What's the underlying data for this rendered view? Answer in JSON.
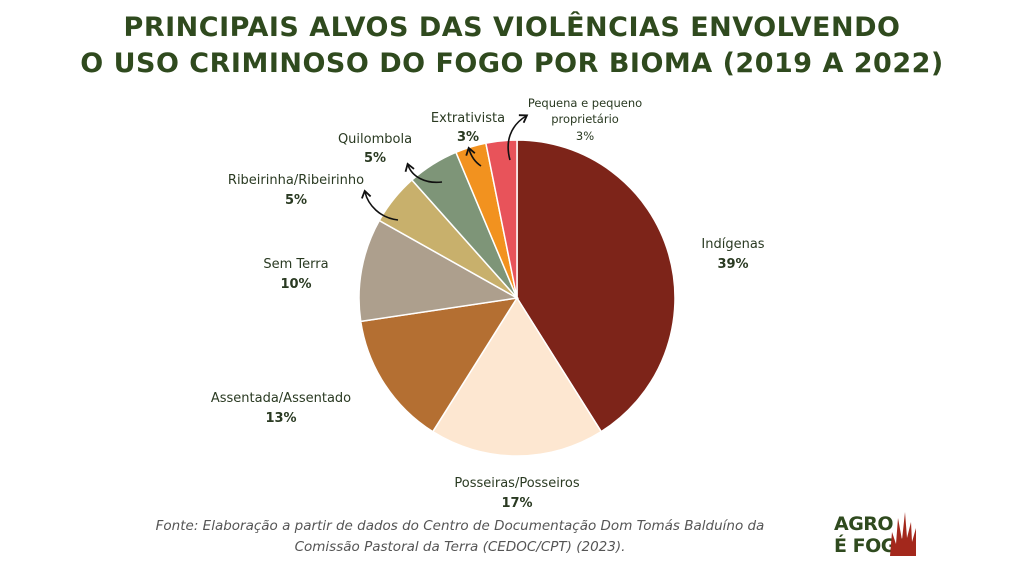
{
  "title": {
    "line1": "PRINCIPAIS ALVOS DAS VIOLÊNCIAS ENVOLVENDO",
    "line2": "O USO CRIMINOSO DO FOGO POR BIOMA (2019 A 2022)"
  },
  "chart_data": {
    "type": "pie",
    "title": "PRINCIPAIS ALVOS DAS VIOLÊNCIAS ENVOLVENDO O USO CRIMINOSO DO FOGO POR BIOMA (2019 A 2022)",
    "slices": [
      {
        "label": "Indígenas",
        "value": 39,
        "display": "39%",
        "color": "#7d2419"
      },
      {
        "label": "Posseiras/Posseiros",
        "value": 17,
        "display": "17%",
        "color": "#fde7d1"
      },
      {
        "label": "Assentada/Assentado",
        "value": 13,
        "display": "13%",
        "color": "#b46f32"
      },
      {
        "label": "Sem Terra",
        "value": 10,
        "display": "10%",
        "color": "#ad9f8d"
      },
      {
        "label": "Ribeirinha/Ribeirinho",
        "value": 5,
        "display": "5%",
        "color": "#c8b06c"
      },
      {
        "label": "Quilombola",
        "value": 5,
        "display": "5%",
        "color": "#7e9578"
      },
      {
        "label": "Extrativista",
        "value": 3,
        "display": "3%",
        "color": "#f2921f"
      },
      {
        "label": "Pequena e pequeno proprietário",
        "value": 3,
        "display": "3%",
        "color": "#e8535a"
      }
    ]
  },
  "source": {
    "line1": "Fonte: Elaboração a partir de dados do Centro de Documentação Dom Tomás Balduíno da",
    "line2": "Comissão Pastoral da Terra (CEDOC/CPT) (2023)."
  },
  "logo": {
    "line1": "AGRO",
    "line2": "É FOGO"
  }
}
